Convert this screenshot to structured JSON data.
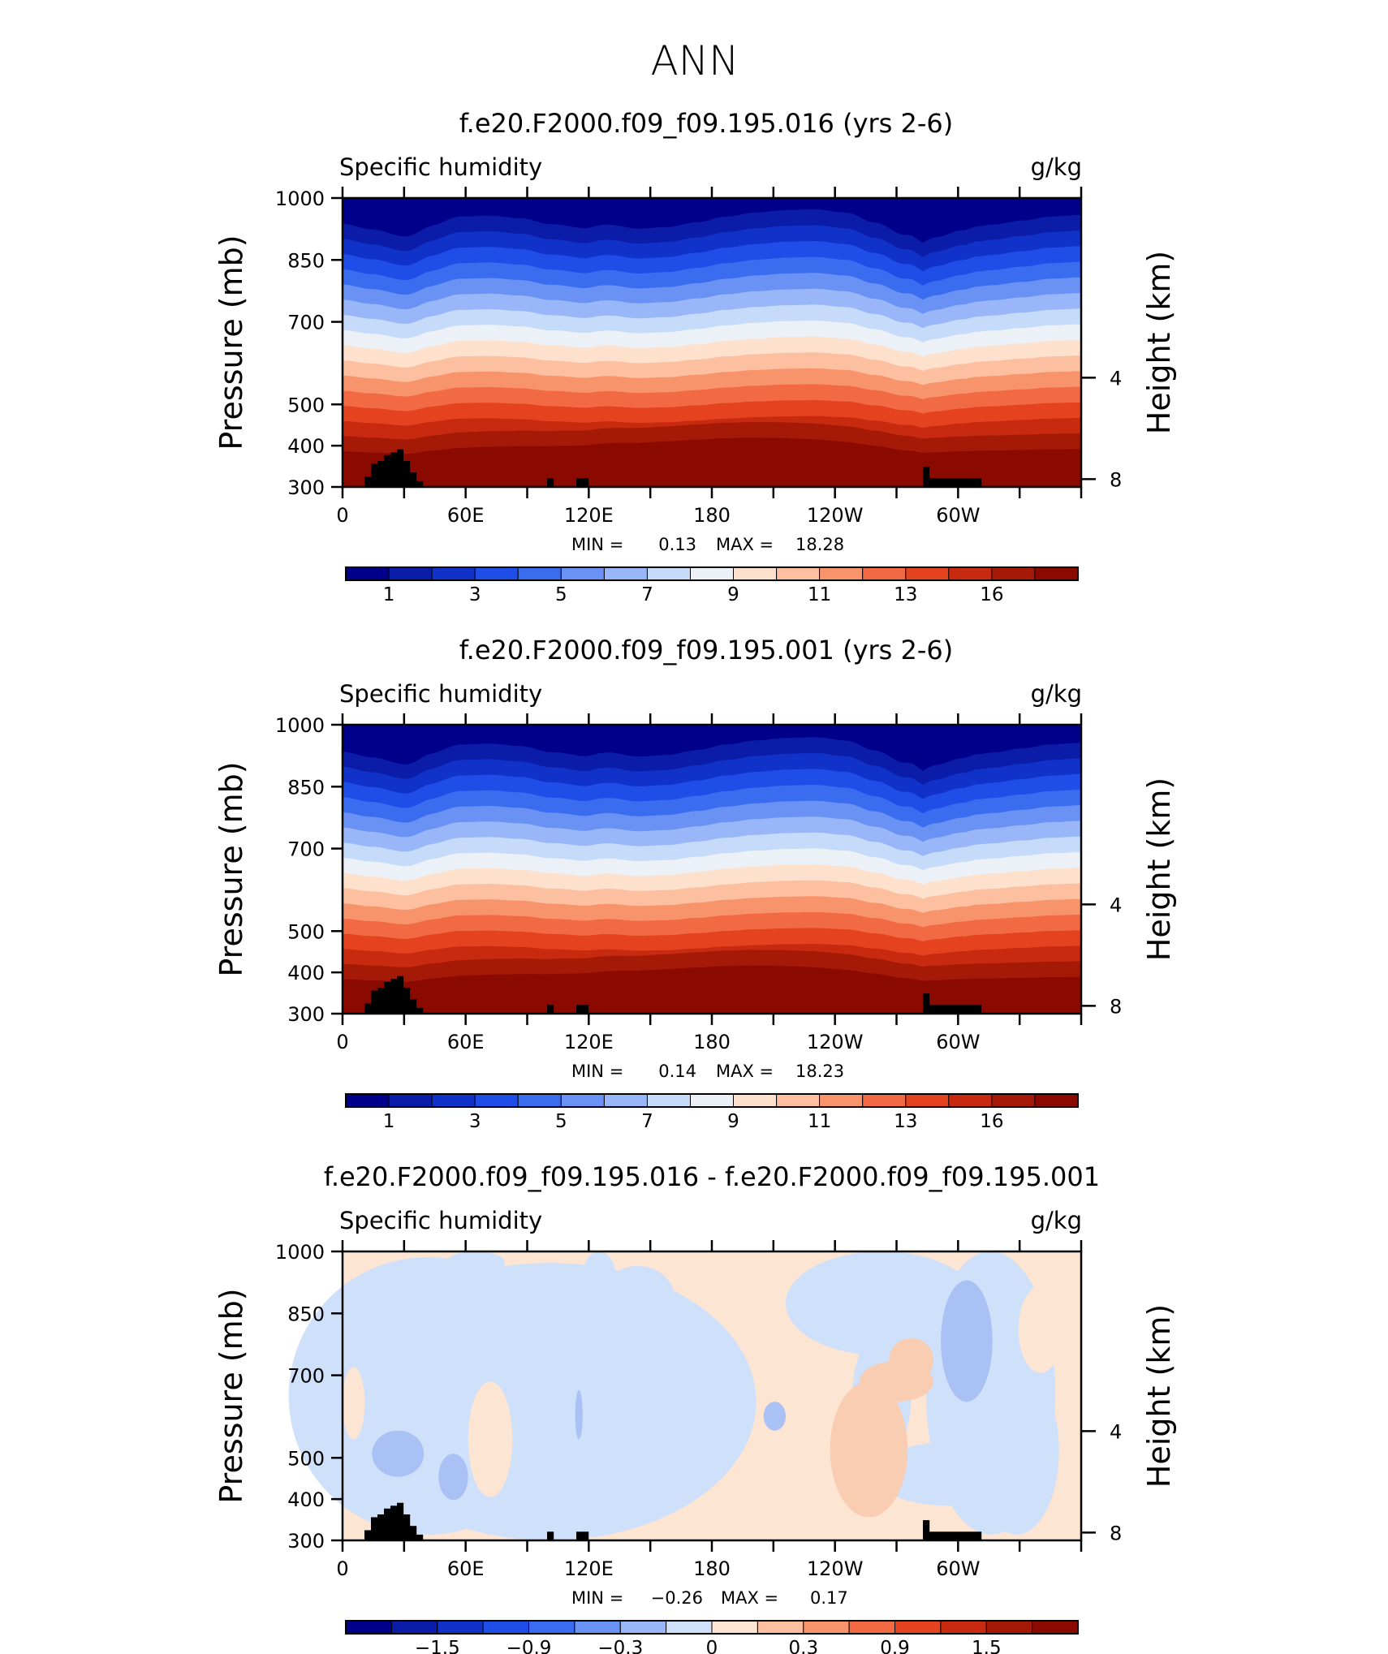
{
  "page_title": "ANN",
  "colors": {
    "abs_levels": [
      "#00008b",
      "#0a1ca8",
      "#1132c8",
      "#1f4de8",
      "#3a6cf0",
      "#6a92f4",
      "#98b6f8",
      "#c6daf9",
      "#ecf1f8",
      "#fde1cc",
      "#fcc0a0",
      "#f8946c",
      "#f26a44",
      "#e5421f",
      "#c82a10",
      "#a51a06",
      "#8a0a00"
    ],
    "diff_levels": [
      "#00008b",
      "#0a1ca8",
      "#1132c8",
      "#1f4de8",
      "#3a6cf0",
      "#6a92f4",
      "#98b6f8",
      "#cfe0fa",
      "#fde5d3",
      "#fcc0a0",
      "#f8946c",
      "#f26a44",
      "#e5421f",
      "#c82a10",
      "#a51a06",
      "#8a0a00"
    ],
    "land_mask": "#000000"
  },
  "chart_data": [
    {
      "type": "heatmap",
      "title": "f.e20.F2000.f09_f09.195.016 (yrs 2-6)",
      "variable": "Specific humidity",
      "units": "g/kg",
      "xlabel": "",
      "ylabel": "Pressure (mb)",
      "ylabel_right": "Height (km)",
      "x_ticks": [
        "0",
        "60E",
        "120E",
        "180",
        "120W",
        "60W"
      ],
      "y_ticks": [
        "300",
        "400",
        "500",
        "700",
        "850",
        "1000"
      ],
      "y_ticks_right": [
        "8",
        "4"
      ],
      "ylim": [
        1000,
        300
      ],
      "min_label": "MIN =",
      "min_value": "0.13",
      "max_label": "MAX =",
      "max_value": "18.28",
      "colorbar_labels": [
        "1",
        "3",
        "5",
        "7",
        "9",
        "11",
        "13",
        "16"
      ],
      "field_range": [
        0.13,
        18.28
      ]
    },
    {
      "type": "heatmap",
      "title": "f.e20.F2000.f09_f09.195.001 (yrs 2-6)",
      "variable": "Specific humidity",
      "units": "g/kg",
      "xlabel": "",
      "ylabel": "Pressure (mb)",
      "ylabel_right": "Height (km)",
      "x_ticks": [
        "0",
        "60E",
        "120E",
        "180",
        "120W",
        "60W"
      ],
      "y_ticks": [
        "300",
        "400",
        "500",
        "700",
        "850",
        "1000"
      ],
      "y_ticks_right": [
        "8",
        "4"
      ],
      "ylim": [
        1000,
        300
      ],
      "min_label": "MIN =",
      "min_value": "0.14",
      "max_label": "MAX =",
      "max_value": "18.23",
      "colorbar_labels": [
        "1",
        "3",
        "5",
        "7",
        "9",
        "11",
        "13",
        "16"
      ],
      "field_range": [
        0.14,
        18.23
      ]
    },
    {
      "type": "heatmap",
      "title": "f.e20.F2000.f09_f09.195.016 - f.e20.F2000.f09_f09.195.001",
      "variable": "Specific humidity",
      "units": "g/kg",
      "xlabel": "",
      "ylabel": "Pressure (mb)",
      "ylabel_right": "Height (km)",
      "x_ticks": [
        "0",
        "60E",
        "120E",
        "180",
        "120W",
        "60W"
      ],
      "y_ticks": [
        "300",
        "400",
        "500",
        "700",
        "850",
        "1000"
      ],
      "y_ticks_right": [
        "8",
        "4"
      ],
      "ylim": [
        1000,
        300
      ],
      "min_label": "MIN =",
      "min_value": "−0.26",
      "max_label": "MAX =",
      "max_value": "0.17",
      "colorbar_labels": [
        "−1.5",
        "−0.9",
        "−0.3",
        "0",
        "0.3",
        "0.9",
        "1.5"
      ],
      "field_range": [
        -0.26,
        0.17
      ]
    }
  ]
}
